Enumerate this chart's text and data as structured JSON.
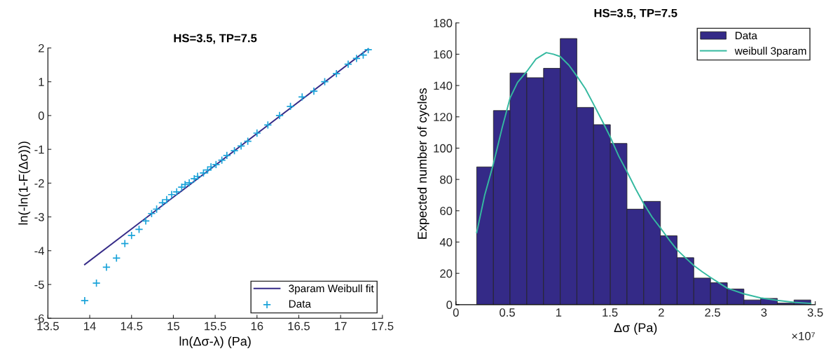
{
  "chart_data": [
    {
      "type": "scatter",
      "title": "HS=3.5, TP=7.5",
      "xlabel": "ln(Δσ-λ) (Pa)",
      "ylabel": "ln(-ln(1-F(Δσ)))",
      "series": [
        {
          "name": "3param Weibull fit",
          "type": "line",
          "color": "#352a87",
          "x": [
            13.94,
            17.33
          ],
          "values": [
            -4.41,
            1.97
          ]
        },
        {
          "name": "Data",
          "type": "scatter",
          "marker": "cross",
          "color": "#1aa3d9",
          "x": [
            13.94,
            14.08,
            14.2,
            14.32,
            14.42,
            14.5,
            14.59,
            14.67,
            14.74,
            14.8,
            14.87,
            14.92,
            14.98,
            15.04,
            15.1,
            15.14,
            15.19,
            15.25,
            15.29,
            15.36,
            15.41,
            15.45,
            15.51,
            15.58,
            15.64,
            15.73,
            15.81,
            15.89,
            16.0,
            16.13,
            16.27,
            16.4,
            16.54,
            16.68,
            16.81,
            16.95,
            17.09,
            17.19,
            17.27,
            17.33
          ],
          "values": [
            -5.48,
            -4.96,
            -4.49,
            -4.22,
            -3.79,
            -3.55,
            -3.37,
            -3.12,
            -2.9,
            -2.77,
            -2.58,
            -2.49,
            -2.34,
            -2.26,
            -2.12,
            -2.04,
            -1.99,
            -1.87,
            -1.8,
            -1.7,
            -1.61,
            -1.52,
            -1.45,
            -1.32,
            -1.18,
            -1.04,
            -0.9,
            -0.76,
            -0.52,
            -0.28,
            0.0,
            0.27,
            0.55,
            0.72,
            1.0,
            1.24,
            1.52,
            1.69,
            1.79,
            1.95
          ]
        }
      ],
      "xlim": [
        13.5,
        17.5
      ],
      "xticks": [
        13.5,
        14,
        14.5,
        15,
        15.5,
        16,
        16.5,
        17,
        17.5
      ],
      "ylim": [
        -6,
        2
      ],
      "yticks": [
        -6,
        -5,
        -4,
        -3,
        -2,
        -1,
        0,
        1,
        2
      ],
      "legend": "bottom right",
      "grid": false
    },
    {
      "type": "histogram",
      "title": "HS=3.5, TP=7.5",
      "xlabel": "Δσ (Pa)",
      "ylabel": "Expected number of cycles",
      "annotations": [
        "×10⁷"
      ],
      "series": [
        {
          "name": "Data",
          "type": "histogram",
          "color": "#342a87",
          "bins": [
            0.202,
            0.365,
            0.527,
            0.69,
            0.853,
            1.016,
            1.178,
            1.341,
            1.504,
            1.666,
            1.829,
            1.992,
            2.154,
            2.317,
            2.48,
            2.643,
            2.805,
            2.968,
            3.131,
            3.293,
            3.456
          ],
          "values": [
            88,
            124,
            148,
            145,
            151,
            170,
            126,
            115,
            103,
            61,
            66,
            44,
            30,
            17,
            14,
            10,
            3,
            4,
            1,
            3
          ]
        },
        {
          "name": "weibull 3param",
          "type": "line",
          "color": "#35b9a0",
          "x": [
            0.202,
            0.28,
            0.365,
            0.45,
            0.527,
            0.6,
            0.69,
            0.78,
            0.88,
            0.95,
            1.016,
            1.1,
            1.178,
            1.26,
            1.341,
            1.42,
            1.504,
            1.585,
            1.666,
            1.75,
            1.829,
            1.91,
            1.992,
            2.07,
            2.154,
            2.235,
            2.317,
            2.4,
            2.48,
            2.56,
            2.643,
            2.8,
            2.968,
            3.131,
            3.293,
            3.456
          ],
          "values": [
            46,
            70,
            90,
            113,
            132,
            142,
            149,
            157,
            161,
            160,
            158.5,
            153,
            146,
            138,
            128,
            118,
            107,
            95,
            85,
            74,
            64.5,
            56,
            49,
            42,
            35,
            30,
            25,
            21,
            17.4,
            14,
            10.5,
            7,
            4.3,
            2.7,
            1.5,
            0.8
          ]
        }
      ],
      "xlim": [
        0,
        3.5
      ],
      "xticks": [
        0,
        0.5,
        1,
        1.5,
        2,
        2.5,
        3,
        3.5
      ],
      "ylim": [
        0,
        180
      ],
      "yticks": [
        0,
        20,
        40,
        60,
        80,
        100,
        120,
        140,
        160,
        180
      ],
      "legend": "top right",
      "grid": false
    }
  ]
}
